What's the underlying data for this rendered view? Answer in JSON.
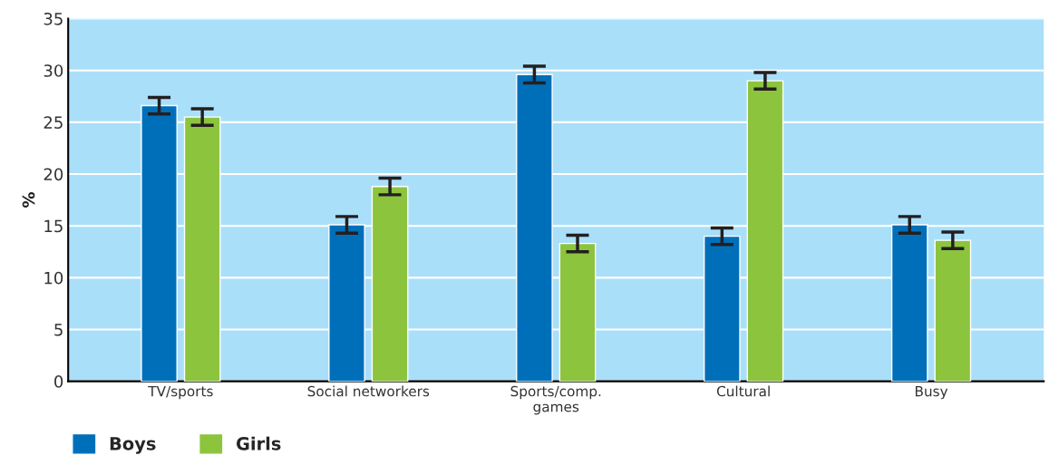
{
  "chart_data": {
    "type": "bar",
    "ylabel": "%",
    "categories": [
      "TV/sports",
      "Social networkers",
      "Sports/comp.\ngames",
      "Cultural",
      "Busy"
    ],
    "series": [
      {
        "name": "Boys",
        "color": "#006fba",
        "values": [
          26.6,
          15.1,
          29.6,
          14.0,
          15.1
        ],
        "errors": [
          0.8,
          0.8,
          0.8,
          0.8,
          0.8
        ]
      },
      {
        "name": "Girls",
        "color": "#8cc43e",
        "values": [
          25.5,
          18.8,
          13.3,
          29.0,
          13.6
        ],
        "errors": [
          0.8,
          0.8,
          0.8,
          0.8,
          0.8
        ]
      }
    ],
    "ylim": [
      0,
      35
    ],
    "yticks": [
      0,
      5,
      10,
      15,
      20,
      25,
      30,
      35
    ],
    "grid": "y",
    "legend": "bottom left"
  }
}
